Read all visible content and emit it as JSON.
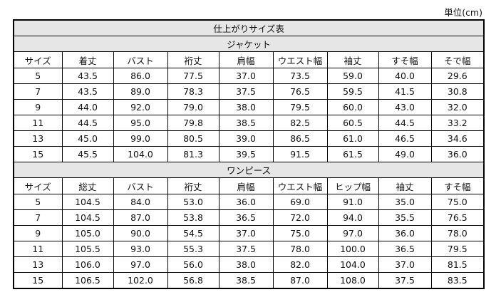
{
  "unit_label": "単位(cm)",
  "title": "仕上がりサイズ表",
  "jacket": {
    "section_title": "ジャケット",
    "headers": [
      "サイズ",
      "着丈",
      "バスト",
      "裄丈",
      "肩幅",
      "ウエスト幅",
      "袖丈",
      "すそ幅",
      "そで幅"
    ],
    "rows": [
      [
        "5",
        "43.5",
        "86.0",
        "77.5",
        "37.0",
        "73.5",
        "59.0",
        "40.0",
        "29.6"
      ],
      [
        "7",
        "43.5",
        "89.0",
        "78.3",
        "37.5",
        "76.5",
        "59.5",
        "41.5",
        "30.8"
      ],
      [
        "9",
        "44.0",
        "92.0",
        "79.0",
        "38.0",
        "79.5",
        "60.0",
        "43.0",
        "32.0"
      ],
      [
        "11",
        "44.5",
        "95.0",
        "79.8",
        "38.5",
        "82.5",
        "60.5",
        "44.5",
        "33.2"
      ],
      [
        "13",
        "45.0",
        "99.0",
        "80.5",
        "39.0",
        "86.5",
        "61.0",
        "46.5",
        "34.6"
      ],
      [
        "15",
        "45.5",
        "104.0",
        "81.3",
        "39.5",
        "91.5",
        "61.5",
        "49.0",
        "36.0"
      ]
    ]
  },
  "onepiece": {
    "section_title": "ワンピース",
    "headers": [
      "サイズ",
      "総丈",
      "バスト",
      "裄丈",
      "肩幅",
      "ウエスト幅",
      "ヒップ幅",
      "袖丈",
      "すそ幅"
    ],
    "rows": [
      [
        "5",
        "104.5",
        "84.0",
        "53.0",
        "36.0",
        "69.0",
        "91.0",
        "35.0",
        "75.0"
      ],
      [
        "7",
        "104.5",
        "87.0",
        "53.8",
        "36.5",
        "72.0",
        "94.0",
        "35.5",
        "76.5"
      ],
      [
        "9",
        "105.0",
        "90.0",
        "54.5",
        "37.0",
        "75.0",
        "97.0",
        "36.0",
        "78.0"
      ],
      [
        "11",
        "105.5",
        "93.0",
        "55.3",
        "37.5",
        "78.0",
        "100.0",
        "36.5",
        "79.5"
      ],
      [
        "13",
        "106.0",
        "97.0",
        "56.0",
        "38.0",
        "82.0",
        "104.0",
        "37.0",
        "81.5"
      ],
      [
        "15",
        "106.5",
        "102.0",
        "56.8",
        "38.5",
        "87.0",
        "108.0",
        "37.5",
        "83.5"
      ]
    ]
  }
}
